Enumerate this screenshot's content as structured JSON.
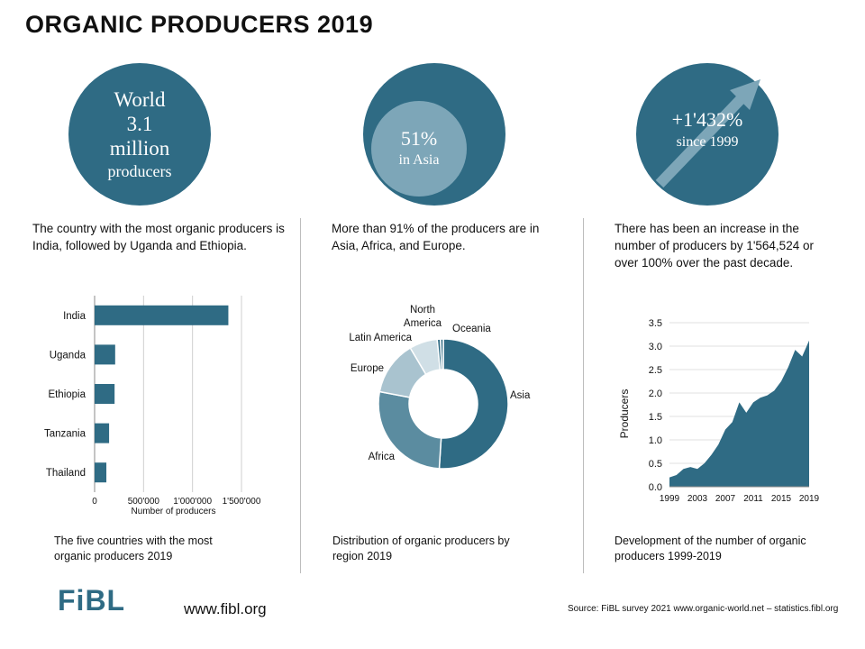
{
  "title": "ORGANIC PRODUCERS 2019",
  "stats": {
    "world": {
      "line1": "World",
      "line2": "3.1",
      "line3": "million",
      "line4": "producers"
    },
    "asia": {
      "percent": "51%",
      "label": "in Asia"
    },
    "growth": {
      "value": "+1'432%",
      "label": "since 1999"
    }
  },
  "descriptions": {
    "left": "The country with the most organic producers is India, followed by Uganda and Ethiopia.",
    "middle": "More than 91% of the producers are in Asia, Africa, and Europe.",
    "right": "There has been an increase in the number of producers by 1'564,524 or over 100% over the past decade."
  },
  "captions": {
    "left": "The five countries with the most organic producers 2019",
    "middle": "Distribution of organic producers by region 2019",
    "right": "Development of the number of organic producers 1999-2019"
  },
  "footer": {
    "logo": "FiBL",
    "url": "www.fibl.org",
    "source": "Source: FiBL survey 2021 www.organic-world.net – statistics.fibl.org"
  },
  "colors": {
    "primary": "#2f6b84",
    "light": "#7da6b8",
    "asia": "#2f6b84",
    "africa": "#5b8ca0",
    "europe": "#a9c3cf",
    "latin_america": "#d0dfe6",
    "north_america": "#2f6b84",
    "oceania": "#2f6b84"
  },
  "chart_data": [
    {
      "type": "bar",
      "orientation": "horizontal",
      "categories": [
        "India",
        "Uganda",
        "Ethiopia",
        "Tanzania",
        "Thailand"
      ],
      "values": [
        1366000,
        210000,
        204000,
        148000,
        120000
      ],
      "xlabel": "Number of producers",
      "xticks": [
        "0",
        "500'000",
        "1'000'000",
        "1'500'000"
      ],
      "xlim": [
        0,
        1500000
      ],
      "grid": true
    },
    {
      "type": "pie",
      "donut": true,
      "categories": [
        "Asia",
        "Africa",
        "Europe",
        "Latin America",
        "North America",
        "Oceania"
      ],
      "values": [
        51,
        27,
        13.5,
        7,
        0.8,
        0.7
      ]
    },
    {
      "type": "area",
      "x": [
        1999,
        2000,
        2001,
        2002,
        2003,
        2004,
        2005,
        2006,
        2007,
        2008,
        2009,
        2010,
        2011,
        2012,
        2013,
        2014,
        2015,
        2016,
        2017,
        2018,
        2019
      ],
      "values": [
        0.2,
        0.25,
        0.38,
        0.42,
        0.38,
        0.5,
        0.68,
        0.9,
        1.22,
        1.38,
        1.8,
        1.58,
        1.8,
        1.9,
        1.95,
        2.05,
        2.25,
        2.55,
        2.92,
        2.78,
        3.12
      ],
      "ylabel": "Producers",
      "yticks": [
        "0.0",
        "0.5",
        "1.0",
        "1.5",
        "2.0",
        "2.5",
        "3.0",
        "3.5"
      ],
      "xticks": [
        "1999",
        "2003",
        "2007",
        "2011",
        "2015",
        "2019"
      ],
      "ylim": [
        0,
        3.5
      ]
    }
  ]
}
